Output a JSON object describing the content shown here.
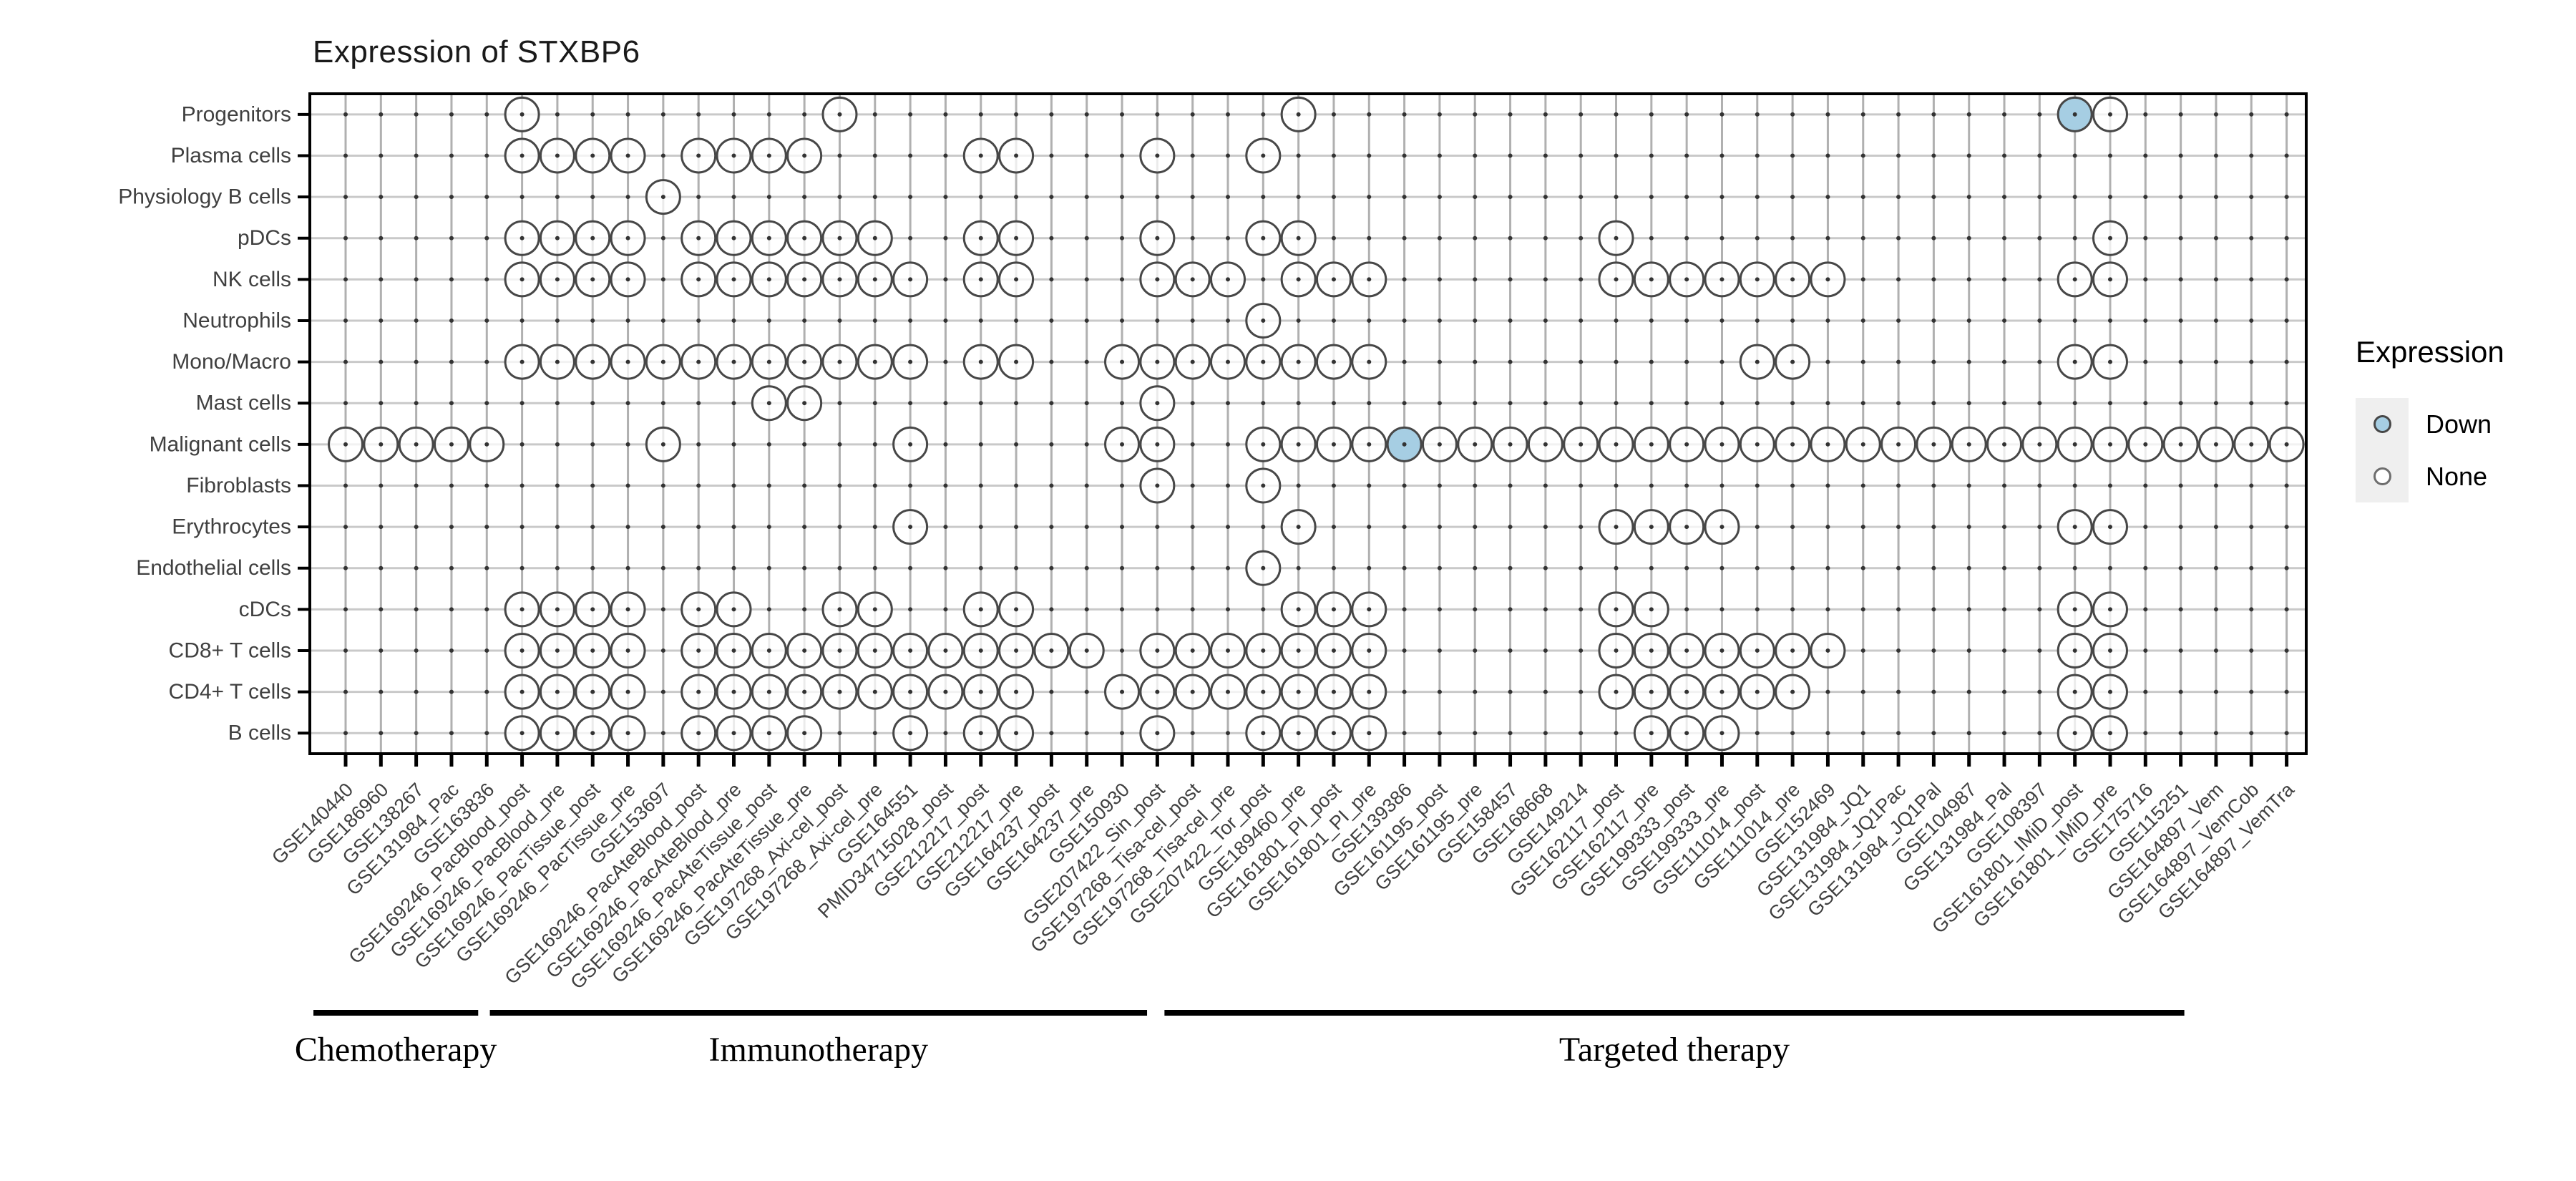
{
  "title": "Expression of STXBP6",
  "legend": {
    "title": "Expression",
    "items": [
      {
        "label": "Down",
        "type": "down"
      },
      {
        "label": "None",
        "type": "none"
      }
    ]
  },
  "colors": {
    "down_fill": "#a6cee3",
    "none_fill": "#ffffff",
    "circle_stroke": "#474747",
    "grid_v": "#b0b0b0",
    "grid_h": "#c9c9c9",
    "point_dot": "#333333",
    "axis": "#000000",
    "tick_label": "#404040"
  },
  "chart_data": {
    "type": "dot-matrix",
    "title": "Expression of STXBP6",
    "legend": {
      "title": "Expression",
      "items": [
        "Down",
        "None"
      ]
    },
    "rows": [
      "Progenitors",
      "Plasma cells",
      "Physiology B cells",
      "pDCs",
      "NK cells",
      "Neutrophils",
      "Mono/Macro",
      "Mast cells",
      "Malignant cells",
      "Fibroblasts",
      "Erythrocytes",
      "Endothelial cells",
      "cDCs",
      "CD8+ T cells",
      "CD4+ T cells",
      "B cells"
    ],
    "columns": [
      "GSE140440",
      "GSE186960",
      "GSE138267",
      "GSE131984_Pac",
      "GSE163836",
      "GSE169246_PacBlood_post",
      "GSE169246_PacBlood_pre",
      "GSE169246_PacTissue_post",
      "GSE169246_PacTissue_pre",
      "GSE153697",
      "GSE169246_PacAteBlood_post",
      "GSE169246_PacAteBlood_pre",
      "GSE169246_PacAteTissue_post",
      "GSE169246_PacAteTissue_pre",
      "GSE197268_Axi-cel_post",
      "GSE197268_Axi-cel_pre",
      "GSE164551",
      "PMID34715028_post",
      "GSE212217_post",
      "GSE212217_pre",
      "GSE164237_post",
      "GSE164237_pre",
      "GSE150930",
      "GSE207422_Sin_post",
      "GSE197268_Tisa-cel_post",
      "GSE197268_Tisa-cel_pre",
      "GSE207422_Tor_post",
      "GSE189460_pre",
      "GSE161801_PI_post",
      "GSE161801_PI_pre",
      "GSE139386",
      "GSE161195_post",
      "GSE161195_pre",
      "GSE158457",
      "GSE168668",
      "GSE149214",
      "GSE162117_post",
      "GSE162117_pre",
      "GSE199333_post",
      "GSE199333_pre",
      "GSE111014_post",
      "GSE111014_pre",
      "GSE152469",
      "GSE131984_JQ1",
      "GSE131984_JQ1Pac",
      "GSE131984_JQ1Pal",
      "GSE104987",
      "GSE131984_Pal",
      "GSE108397",
      "GSE161801_IMiD_post",
      "GSE161801_IMiD_pre",
      "GSE175716",
      "GSE115251",
      "GSE164897_Vem",
      "GSE164897_VemCob",
      "GSE164897_VemTra"
    ],
    "groups": [
      {
        "label": "Chemotherapy",
        "from": 1,
        "to": 5
      },
      {
        "label": "Immunotherapy",
        "from": 6,
        "to": 23
      },
      {
        "label": "Targeted therapy",
        "from": 24,
        "to": 53
      }
    ],
    "dots": {
      "Progenitors": [
        6,
        15,
        28,
        50,
        51
      ],
      "Plasma cells": [
        6,
        7,
        8,
        9,
        11,
        12,
        13,
        14,
        19,
        20,
        24,
        27
      ],
      "Physiology B cells": [
        10
      ],
      "pDCs": [
        6,
        7,
        8,
        9,
        11,
        12,
        13,
        14,
        15,
        16,
        19,
        20,
        24,
        27,
        28,
        37,
        51
      ],
      "NK cells": [
        6,
        7,
        8,
        9,
        11,
        12,
        13,
        14,
        15,
        16,
        17,
        19,
        20,
        24,
        25,
        26,
        28,
        29,
        30,
        37,
        38,
        39,
        40,
        41,
        42,
        43,
        50,
        51
      ],
      "Neutrophils": [
        27
      ],
      "Mono/Macro": [
        6,
        7,
        8,
        9,
        10,
        11,
        12,
        13,
        14,
        15,
        16,
        17,
        19,
        20,
        23,
        24,
        25,
        26,
        27,
        28,
        29,
        30,
        41,
        42,
        50,
        51
      ],
      "Mast cells": [
        13,
        14,
        24
      ],
      "Malignant cells": [
        1,
        2,
        3,
        4,
        5,
        10,
        17,
        23,
        24,
        27,
        28,
        29,
        30,
        31,
        32,
        33,
        34,
        35,
        36,
        37,
        38,
        39,
        40,
        41,
        42,
        43,
        44,
        45,
        46,
        47,
        48,
        49,
        50,
        51,
        52,
        53,
        54,
        55,
        56
      ],
      "Fibroblasts": [
        24,
        27
      ],
      "Erythrocytes": [
        17,
        28,
        37,
        38,
        39,
        40,
        50,
        51
      ],
      "Endothelial cells": [
        27
      ],
      "cDCs": [
        6,
        7,
        8,
        9,
        11,
        12,
        15,
        16,
        19,
        20,
        28,
        29,
        30,
        37,
        38,
        50,
        51
      ],
      "CD8+ T cells": [
        6,
        7,
        8,
        9,
        11,
        12,
        13,
        14,
        15,
        16,
        17,
        18,
        19,
        20,
        21,
        22,
        24,
        25,
        26,
        27,
        28,
        29,
        30,
        37,
        38,
        39,
        40,
        41,
        42,
        43,
        50,
        51
      ],
      "CD4+ T cells": [
        6,
        7,
        8,
        9,
        11,
        12,
        13,
        14,
        15,
        16,
        17,
        18,
        19,
        20,
        23,
        24,
        25,
        26,
        27,
        28,
        29,
        30,
        37,
        38,
        39,
        40,
        41,
        42,
        50,
        51
      ],
      "B cells": [
        6,
        7,
        8,
        9,
        11,
        12,
        13,
        14,
        17,
        19,
        20,
        24,
        27,
        28,
        29,
        30,
        38,
        39,
        40,
        50,
        51
      ]
    },
    "down": {
      "Progenitors": [
        50
      ],
      "Malignant cells": [
        31
      ]
    }
  }
}
